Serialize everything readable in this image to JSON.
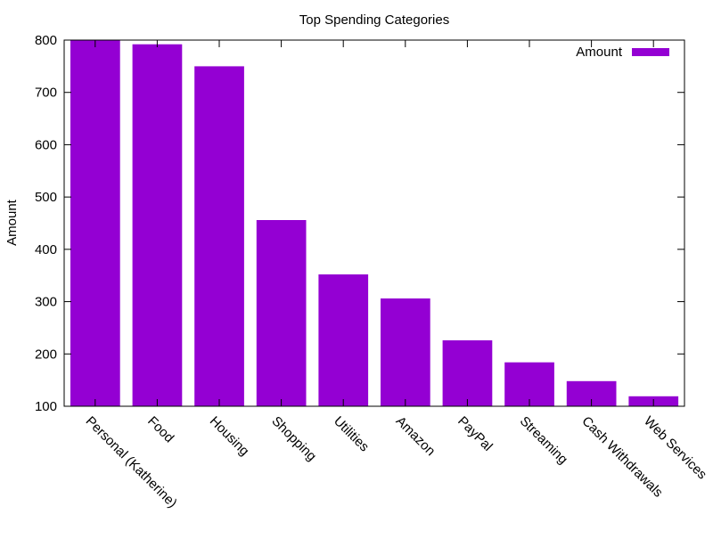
{
  "chart_data": {
    "type": "bar",
    "title": "Top Spending Categories",
    "xlabel": "",
    "ylabel": "Amount",
    "ylim": [
      100,
      800
    ],
    "yticks": [
      100,
      200,
      300,
      400,
      500,
      600,
      700,
      800
    ],
    "categories": [
      "Personal (Katherine)",
      "Food",
      "Housing",
      "Shopping",
      "Utilities",
      "Amazon",
      "PayPal",
      "Streaming",
      "Cash Withdrawals",
      "Web Services"
    ],
    "series": [
      {
        "name": "Amount",
        "color": "#9400d3",
        "values": [
          800,
          792,
          750,
          456,
          352,
          306,
          226,
          184,
          148,
          119
        ]
      }
    ],
    "legend_position": "top-right",
    "grid": false
  }
}
